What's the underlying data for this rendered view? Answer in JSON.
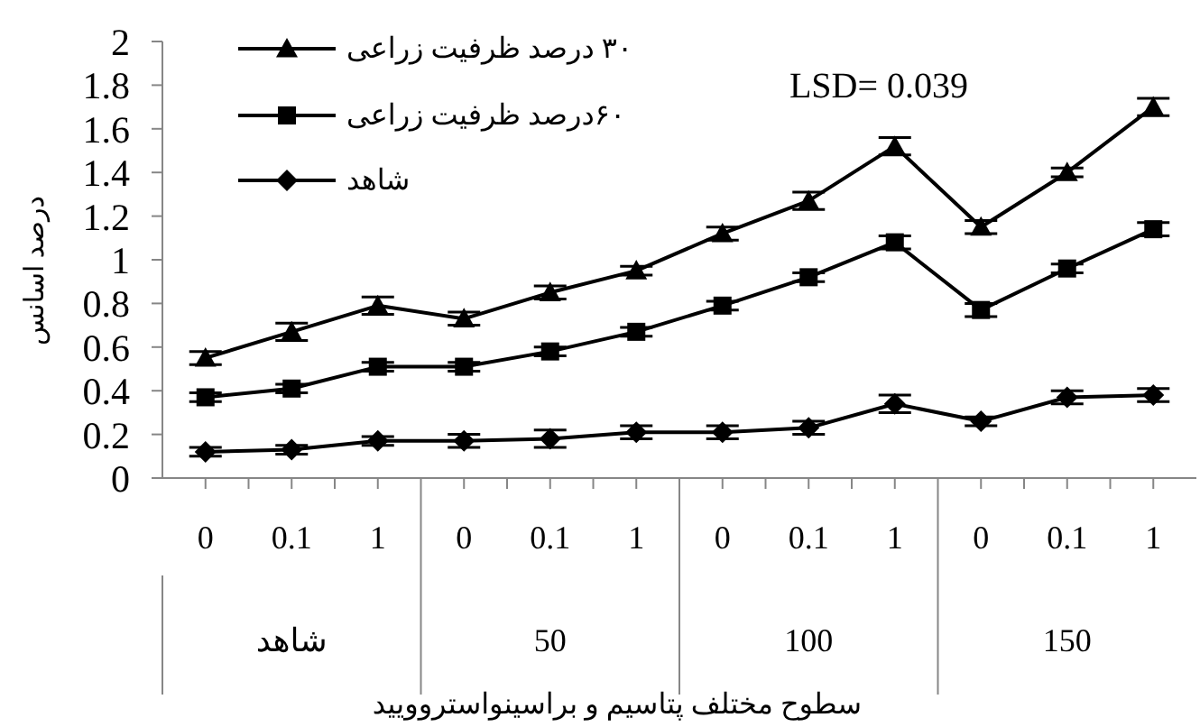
{
  "chart_data": {
    "type": "line",
    "ylabel": "درصد اسانس",
    "xlabel": "سطوح مختلف پتاسیم و براسینواستروویید",
    "annotations": [
      "LSD= 0.039",
      "شاهد",
      "50",
      "100",
      "150"
    ],
    "categories": [
      "0",
      "0.1",
      "1",
      "0",
      "0.1",
      "1",
      "0",
      "0.1",
      "1",
      "0",
      "0.1",
      "1"
    ],
    "series": [
      {
        "name": "۳۰ درصد ظرفیت زراعی",
        "color": "#000000",
        "marker": "triangle",
        "values": [
          0.55,
          0.67,
          0.79,
          0.73,
          0.85,
          0.95,
          1.12,
          1.27,
          1.52,
          1.15,
          1.4,
          1.7
        ],
        "errors": [
          0.03,
          0.04,
          0.04,
          0.03,
          0.03,
          0.02,
          0.03,
          0.04,
          0.04,
          0.03,
          0.02,
          0.04
        ]
      },
      {
        "name": "۶۰درصد ظرفیت زراعی",
        "color": "#000000",
        "marker": "square",
        "values": [
          0.37,
          0.41,
          0.51,
          0.51,
          0.58,
          0.67,
          0.79,
          0.92,
          1.08,
          0.77,
          0.96,
          1.14
        ],
        "errors": [
          0.02,
          0.02,
          0.02,
          0.02,
          0.02,
          0.02,
          0.02,
          0.02,
          0.03,
          0.03,
          0.02,
          0.03
        ]
      },
      {
        "name": "شاهد",
        "color": "#000000",
        "marker": "diamond",
        "values": [
          0.12,
          0.13,
          0.17,
          0.17,
          0.18,
          0.21,
          0.21,
          0.23,
          0.34,
          0.26,
          0.37,
          0.38
        ],
        "errors": [
          0.02,
          0.02,
          0.02,
          0.03,
          0.04,
          0.03,
          0.03,
          0.03,
          0.04,
          0.02,
          0.03,
          0.03
        ]
      }
    ],
    "ylim": [
      0,
      2
    ],
    "yticks": [
      0,
      0.2,
      0.4,
      0.6,
      0.8,
      1,
      1.2,
      1.4,
      1.6,
      1.8,
      2
    ],
    "legend": "top left",
    "line_style": "solid"
  }
}
